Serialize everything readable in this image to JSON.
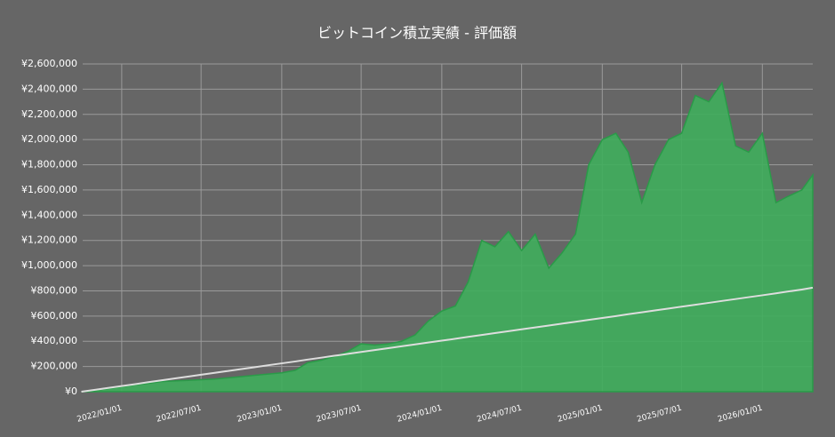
{
  "chart_data": {
    "type": "area",
    "title": "ビットコイン積立実績 - 評価額",
    "x": [
      "2021/10/01",
      "2021/11/01",
      "2021/12/01",
      "2022/01/01",
      "2022/02/01",
      "2022/03/01",
      "2022/04/01",
      "2022/05/01",
      "2022/06/01",
      "2022/07/01",
      "2022/08/01",
      "2022/09/01",
      "2022/10/01",
      "2022/11/01",
      "2022/12/01",
      "2023/01/01",
      "2023/02/01",
      "2023/03/01",
      "2023/04/01",
      "2023/05/01",
      "2023/06/01",
      "2023/07/01",
      "2023/08/01",
      "2023/09/01",
      "2023/10/01",
      "2023/11/01",
      "2023/12/01",
      "2024/01/01",
      "2024/02/01",
      "2024/03/01",
      "2024/04/01",
      "2024/05/01",
      "2024/06/01",
      "2024/07/01",
      "2024/08/01",
      "2024/09/01",
      "2024/10/01",
      "2024/11/01",
      "2024/12/01",
      "2025/01/01",
      "2025/02/01",
      "2025/03/01",
      "2025/04/01",
      "2025/05/01",
      "2025/06/01",
      "2025/07/01",
      "2025/08/01",
      "2025/09/01",
      "2025/10/01",
      "2025/11/01",
      "2025/12/01",
      "2026/01/01",
      "2026/02/01",
      "2026/03/01",
      "2026/04/01",
      "2026/04/26"
    ],
    "series": [
      {
        "style": "area",
        "color": "#3fae5c",
        "edge_color": "#2a9a48",
        "values": [
          0,
          10000,
          25000,
          40000,
          55000,
          65000,
          80000,
          85000,
          90000,
          95000,
          100000,
          110000,
          120000,
          130000,
          140000,
          150000,
          170000,
          230000,
          250000,
          280000,
          320000,
          380000,
          370000,
          380000,
          400000,
          450000,
          560000,
          640000,
          680000,
          870000,
          1200000,
          1150000,
          1270000,
          1120000,
          1250000,
          980000,
          1100000,
          1250000,
          1800000,
          2000000,
          2050000,
          1900000,
          1500000,
          1800000,
          2000000,
          2050000,
          2350000,
          2300000,
          2450000,
          1950000,
          1900000,
          2050000,
          1500000,
          1550000,
          1600000,
          1720000
        ]
      },
      {
        "style": "line",
        "color": "#dddddd",
        "values": [
          0,
          15000,
          30000,
          45000,
          60000,
          75000,
          90000,
          105000,
          120000,
          135000,
          150000,
          165000,
          180000,
          195000,
          210000,
          225000,
          240000,
          255000,
          270000,
          285000,
          300000,
          315000,
          330000,
          345000,
          360000,
          375000,
          390000,
          405000,
          420000,
          435000,
          450000,
          465000,
          480000,
          495000,
          510000,
          525000,
          540000,
          555000,
          570000,
          585000,
          600000,
          615000,
          630000,
          645000,
          660000,
          675000,
          690000,
          705000,
          720000,
          735000,
          750000,
          765000,
          780000,
          795000,
          810000,
          825000
        ]
      }
    ],
    "xlim": [
      "2021/10/04",
      "2026/04/26"
    ],
    "xticks": [
      "2022/01/01",
      "2022/07/01",
      "2023/01/01",
      "2023/07/01",
      "2024/01/01",
      "2024/07/01",
      "2025/01/01",
      "2025/07/01",
      "2026/01/01"
    ],
    "ylim": [
      0,
      2600000
    ],
    "yticks": [
      {
        "value": 0,
        "label": "¥0"
      },
      {
        "value": 200000,
        "label": "¥200,000"
      },
      {
        "value": 400000,
        "label": "¥400,000"
      },
      {
        "value": 600000,
        "label": "¥600,000"
      },
      {
        "value": 800000,
        "label": "¥800,000"
      },
      {
        "value": 1000000,
        "label": "¥1,000,000"
      },
      {
        "value": 1200000,
        "label": "¥1,200,000"
      },
      {
        "value": 1400000,
        "label": "¥1,400,000"
      },
      {
        "value": 1600000,
        "label": "¥1,600,000"
      },
      {
        "value": 1800000,
        "label": "¥1,800,000"
      },
      {
        "value": 2000000,
        "label": "¥2,000,000"
      },
      {
        "value": 2200000,
        "label": "¥2,200,000"
      },
      {
        "value": 2400000,
        "label": "¥2,400,000"
      },
      {
        "value": 2600000,
        "label": "¥2,600,000"
      }
    ],
    "grid": true
  }
}
